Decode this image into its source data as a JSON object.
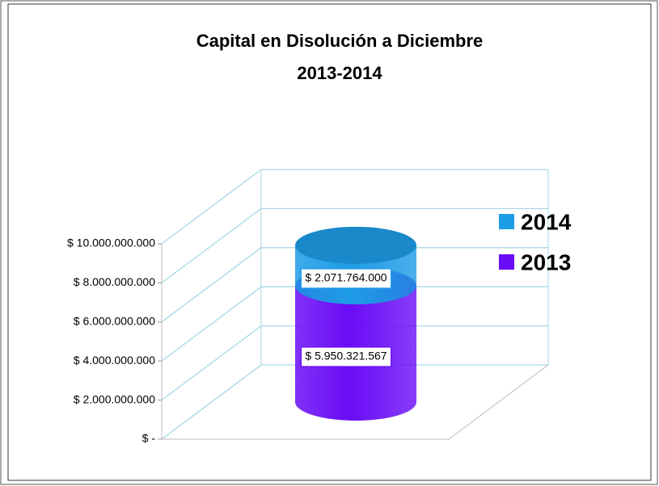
{
  "chart_data": {
    "type": "cylinder-stacked",
    "title": [
      "Capital en Disolución a Diciembre",
      "2013-2014"
    ],
    "categories": [
      null
    ],
    "series": [
      {
        "name": "2013",
        "color": "#6a0cf5",
        "values": [
          5950321567
        ],
        "value_labels": [
          "$ 5.950.321.567"
        ]
      },
      {
        "name": "2014",
        "color": "#1d9ce6",
        "values": [
          2071764000
        ],
        "value_labels": [
          "$ 2.071.764.000"
        ]
      }
    ],
    "ylim": [
      0,
      10000000000
    ],
    "yticks": [
      {
        "value": 0,
        "label": "$ -"
      },
      {
        "value": 2000000000,
        "label": "$ 2.000.000.000"
      },
      {
        "value": 4000000000,
        "label": "$ 4.000.000.000"
      },
      {
        "value": 6000000000,
        "label": "$ 6.000.000.000"
      },
      {
        "value": 8000000000,
        "label": "$ 8.000.000.000"
      },
      {
        "value": 10000000000,
        "label": "$ 10.000.000.000"
      }
    ],
    "grid": true,
    "legend": "right",
    "legend_order": "reverse"
  }
}
